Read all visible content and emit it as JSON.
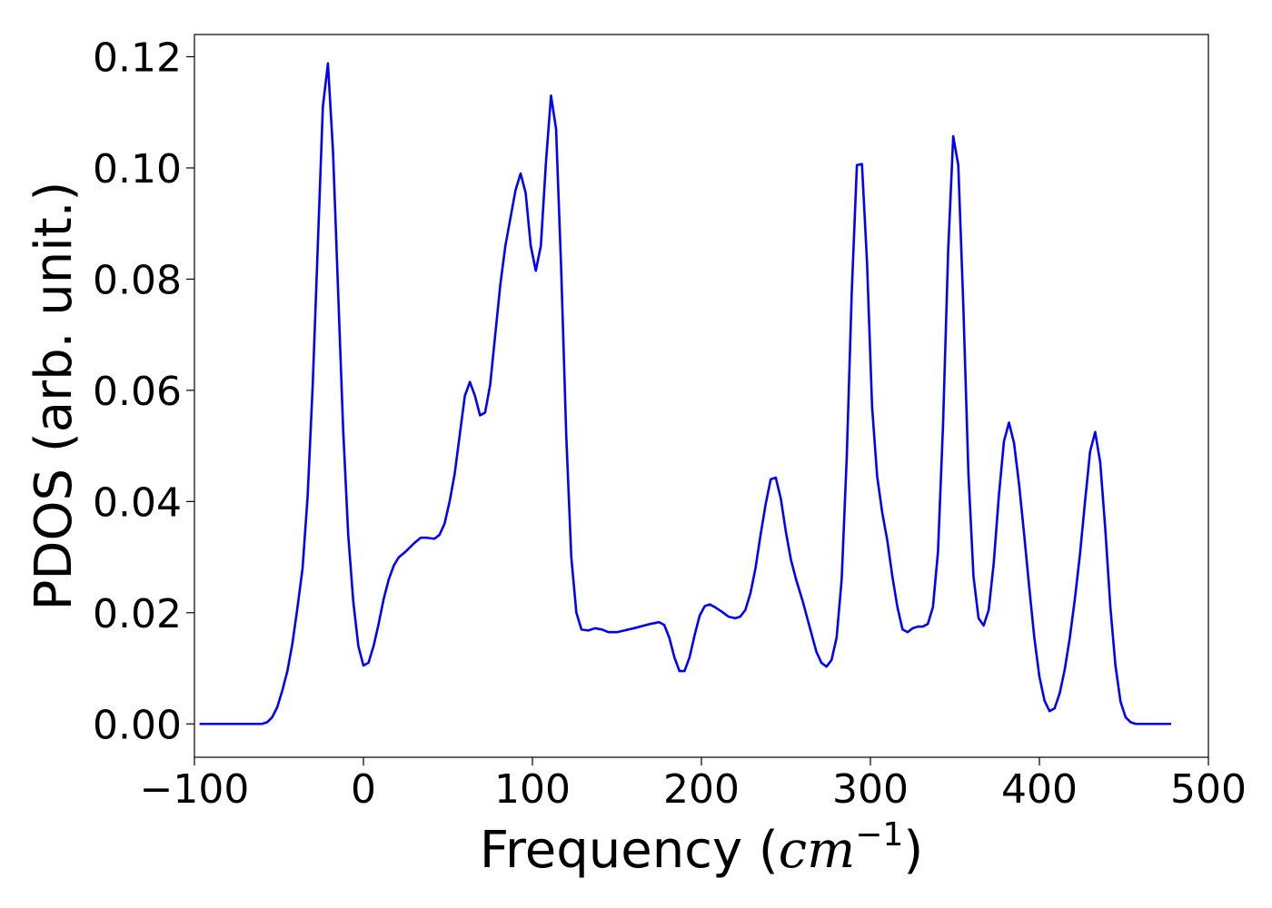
{
  "chart_data": {
    "type": "line",
    "title": "",
    "xlabel_text": "Frequency (",
    "xlabel_unit": "cm",
    "xlabel_exponent": "−1",
    "xlabel_close": ")",
    "ylabel": "PDOS (arb. unit.)",
    "xlim": [
      -100,
      500
    ],
    "ylim": [
      -0.006,
      0.124
    ],
    "xticks": [
      -100,
      0,
      100,
      200,
      300,
      400,
      500
    ],
    "xtick_labels": [
      "−100",
      "0",
      "100",
      "200",
      "300",
      "400",
      "500"
    ],
    "yticks": [
      0.0,
      0.02,
      0.04,
      0.06,
      0.08,
      0.1,
      0.12
    ],
    "ytick_labels": [
      "0.00",
      "0.02",
      "0.04",
      "0.06",
      "0.08",
      "0.10",
      "0.12"
    ],
    "grid": false,
    "legend": "none",
    "series": [
      {
        "color": "#0000ff",
        "points": [
          [
            -97,
            0.0
          ],
          [
            -60,
            0.0
          ],
          [
            -57,
            0.0003
          ],
          [
            -54,
            0.0012
          ],
          [
            -51,
            0.003
          ],
          [
            -48,
            0.006
          ],
          [
            -45,
            0.0095
          ],
          [
            -42,
            0.0145
          ],
          [
            -39,
            0.021
          ],
          [
            -36,
            0.028
          ],
          [
            -33,
            0.041
          ],
          [
            -30,
            0.061
          ],
          [
            -27,
            0.086
          ],
          [
            -24,
            0.111
          ],
          [
            -21,
            0.1188
          ],
          [
            -18,
            0.103
          ],
          [
            -15,
            0.078
          ],
          [
            -12,
            0.053
          ],
          [
            -9,
            0.034
          ],
          [
            -6,
            0.022
          ],
          [
            -3,
            0.014
          ],
          [
            0,
            0.0105
          ],
          [
            3,
            0.011
          ],
          [
            6,
            0.014
          ],
          [
            9,
            0.018
          ],
          [
            12,
            0.0225
          ],
          [
            15,
            0.026
          ],
          [
            18,
            0.0285
          ],
          [
            21,
            0.03
          ],
          [
            25,
            0.031
          ],
          [
            30,
            0.0325
          ],
          [
            34,
            0.0335
          ],
          [
            37,
            0.0335
          ],
          [
            42,
            0.0333
          ],
          [
            45,
            0.034
          ],
          [
            48,
            0.036
          ],
          [
            51,
            0.04
          ],
          [
            54,
            0.045
          ],
          [
            57,
            0.052
          ],
          [
            60,
            0.059
          ],
          [
            63,
            0.0615
          ],
          [
            66,
            0.059
          ],
          [
            69,
            0.0555
          ],
          [
            72,
            0.056
          ],
          [
            75,
            0.061
          ],
          [
            78,
            0.07
          ],
          [
            81,
            0.079
          ],
          [
            84,
            0.086
          ],
          [
            87,
            0.091
          ],
          [
            90,
            0.096
          ],
          [
            93,
            0.099
          ],
          [
            96,
            0.0955
          ],
          [
            99,
            0.086
          ],
          [
            102,
            0.0815
          ],
          [
            105,
            0.086
          ],
          [
            108,
            0.101
          ],
          [
            111,
            0.113
          ],
          [
            114,
            0.107
          ],
          [
            117,
            0.082
          ],
          [
            120,
            0.052
          ],
          [
            123,
            0.03
          ],
          [
            126,
            0.02
          ],
          [
            129,
            0.017
          ],
          [
            133,
            0.0168
          ],
          [
            137,
            0.0172
          ],
          [
            141,
            0.017
          ],
          [
            145,
            0.0165
          ],
          [
            150,
            0.0165
          ],
          [
            160,
            0.0172
          ],
          [
            170,
            0.018
          ],
          [
            175,
            0.0183
          ],
          [
            178,
            0.0178
          ],
          [
            181,
            0.0155
          ],
          [
            184,
            0.012
          ],
          [
            187,
            0.0095
          ],
          [
            190,
            0.0095
          ],
          [
            193,
            0.012
          ],
          [
            196,
            0.016
          ],
          [
            199,
            0.0195
          ],
          [
            202,
            0.0212
          ],
          [
            205,
            0.0215
          ],
          [
            208,
            0.021
          ],
          [
            212,
            0.0202
          ],
          [
            216,
            0.0193
          ],
          [
            220,
            0.019
          ],
          [
            223,
            0.0193
          ],
          [
            226,
            0.0205
          ],
          [
            229,
            0.0235
          ],
          [
            232,
            0.028
          ],
          [
            235,
            0.034
          ],
          [
            238,
            0.0395
          ],
          [
            241,
            0.044
          ],
          [
            244,
            0.0443
          ],
          [
            247,
            0.0405
          ],
          [
            250,
            0.0345
          ],
          [
            253,
            0.0295
          ],
          [
            256,
            0.026
          ],
          [
            260,
            0.022
          ],
          [
            264,
            0.0175
          ],
          [
            268,
            0.013
          ],
          [
            271,
            0.011
          ],
          [
            274,
            0.0103
          ],
          [
            277,
            0.0115
          ],
          [
            280,
            0.0155
          ],
          [
            283,
            0.026
          ],
          [
            286,
            0.048
          ],
          [
            289,
            0.078
          ],
          [
            292,
            0.1005
          ],
          [
            295,
            0.1007
          ],
          [
            298,
            0.083
          ],
          [
            301,
            0.057
          ],
          [
            304,
            0.0445
          ],
          [
            307,
            0.038
          ],
          [
            310,
            0.033
          ],
          [
            313,
            0.0265
          ],
          [
            316,
            0.021
          ],
          [
            319,
            0.017
          ],
          [
            322,
            0.0165
          ],
          [
            325,
            0.0172
          ],
          [
            328,
            0.0175
          ],
          [
            331,
            0.0175
          ],
          [
            334,
            0.018
          ],
          [
            337,
            0.021
          ],
          [
            340,
            0.031
          ],
          [
            343,
            0.054
          ],
          [
            346,
            0.085
          ],
          [
            349,
            0.1057
          ],
          [
            352,
            0.1005
          ],
          [
            355,
            0.075
          ],
          [
            358,
            0.045
          ],
          [
            361,
            0.0265
          ],
          [
            364,
            0.019
          ],
          [
            367,
            0.0177
          ],
          [
            370,
            0.0205
          ],
          [
            373,
            0.029
          ],
          [
            376,
            0.041
          ],
          [
            379,
            0.0508
          ],
          [
            382,
            0.0542
          ],
          [
            385,
            0.0505
          ],
          [
            388,
            0.043
          ],
          [
            391,
            0.034
          ],
          [
            394,
            0.0245
          ],
          [
            397,
            0.0155
          ],
          [
            400,
            0.0085
          ],
          [
            403,
            0.0042
          ],
          [
            406,
            0.0023
          ],
          [
            409,
            0.0028
          ],
          [
            412,
            0.0055
          ],
          [
            415,
            0.0098
          ],
          [
            418,
            0.0155
          ],
          [
            421,
            0.0225
          ],
          [
            424,
            0.0305
          ],
          [
            427,
            0.04
          ],
          [
            430,
            0.049
          ],
          [
            433,
            0.0525
          ],
          [
            436,
            0.047
          ],
          [
            439,
            0.035
          ],
          [
            442,
            0.021
          ],
          [
            445,
            0.0105
          ],
          [
            448,
            0.004
          ],
          [
            451,
            0.0012
          ],
          [
            454,
            0.0003
          ],
          [
            457,
            0.0
          ],
          [
            478,
            0.0
          ]
        ]
      }
    ]
  }
}
